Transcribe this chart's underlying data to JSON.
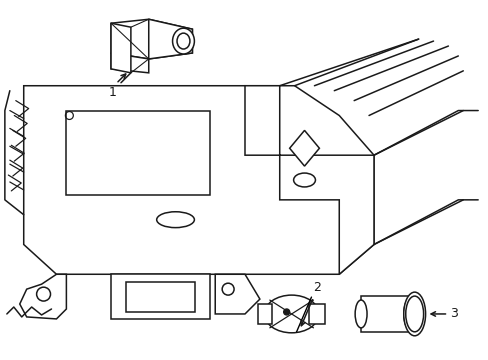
{
  "background_color": "#ffffff",
  "line_color": "#1a1a1a",
  "line_width": 1.1,
  "fig_width": 4.89,
  "fig_height": 3.6,
  "dpi": 100,
  "label_1": "1",
  "label_2": "2",
  "label_3": "3"
}
